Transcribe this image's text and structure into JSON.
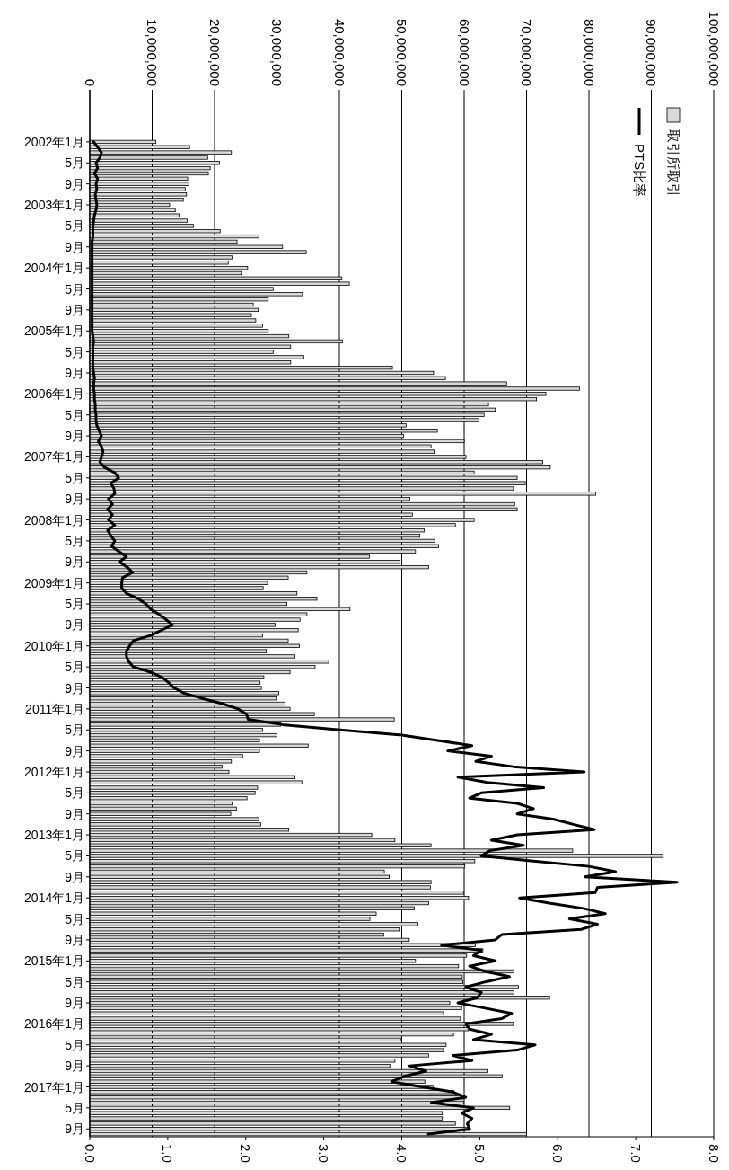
{
  "chart_data": {
    "type": "bar",
    "orientation": "horizontal",
    "categories": [
      "2002年1月",
      null,
      null,
      null,
      "5月",
      null,
      null,
      null,
      "9月",
      null,
      null,
      null,
      "2003年1月",
      null,
      null,
      null,
      "5月",
      null,
      null,
      null,
      "9月",
      null,
      null,
      null,
      "2004年1月",
      null,
      null,
      null,
      "5月",
      null,
      null,
      null,
      "9月",
      null,
      null,
      null,
      "2005年1月",
      null,
      null,
      null,
      "5月",
      null,
      null,
      null,
      "9月",
      null,
      null,
      null,
      "2006年1月",
      null,
      null,
      null,
      "5月",
      null,
      null,
      null,
      "9月",
      null,
      null,
      null,
      "2007年1月",
      null,
      null,
      null,
      "5月",
      null,
      null,
      null,
      "9月",
      null,
      null,
      null,
      "2008年1月",
      null,
      null,
      null,
      "5月",
      null,
      null,
      null,
      "9月",
      null,
      null,
      null,
      "2009年1月",
      null,
      null,
      null,
      "5月",
      null,
      null,
      null,
      "9月",
      null,
      null,
      null,
      "2010年1月",
      null,
      null,
      null,
      "5月",
      null,
      null,
      null,
      "9月",
      null,
      null,
      null,
      "2011年1月",
      null,
      null,
      null,
      "5月",
      null,
      null,
      null,
      "9月",
      null,
      null,
      null,
      "2012年1月",
      null,
      null,
      null,
      "5月",
      null,
      null,
      null,
      "9月",
      null,
      null,
      null,
      "2013年1月",
      null,
      null,
      null,
      "5月",
      null,
      null,
      null,
      "9月",
      null,
      null,
      null,
      "2014年1月",
      null,
      null,
      null,
      "5月",
      null,
      null,
      null,
      "9月",
      null,
      null,
      null,
      "2015年1月",
      null,
      null,
      null,
      "5月",
      null,
      null,
      null,
      "9月",
      null,
      null,
      null,
      "2016年1月",
      null,
      null,
      null,
      "5月",
      null,
      null,
      null,
      "9月",
      null,
      null,
      null,
      "2017年1月",
      null,
      null,
      null,
      "5月",
      null,
      null,
      null,
      "9月",
      null
    ],
    "series": [
      {
        "name": "取引所取引",
        "color": "#d9d9d9",
        "values": [
          10600000,
          16000000,
          22700000,
          18900000,
          20800000,
          19300000,
          19000000,
          15700000,
          15900000,
          15300000,
          15500000,
          15000000,
          12800000,
          13700000,
          14300000,
          15600000,
          16600000,
          20900000,
          27100000,
          23600000,
          30900000,
          34700000,
          22800000,
          22200000,
          25300000,
          24300000,
          40400000,
          41600000,
          29400000,
          34100000,
          28600000,
          26200000,
          27000000,
          25900000,
          26600000,
          27700000,
          28600000,
          31900000,
          40500000,
          32200000,
          29400000,
          34300000,
          32200000,
          48500000,
          55100000,
          57000000,
          66800000,
          78500000,
          73100000,
          71600000,
          63900000,
          65000000,
          63200000,
          62400000,
          50700000,
          55700000,
          50300000,
          60000000,
          54700000,
          55200000,
          60300000,
          72600000,
          73800000,
          61600000,
          68500000,
          69800000,
          67900000,
          81100000,
          51300000,
          68100000,
          68500000,
          51700000,
          61600000,
          58600000,
          53600000,
          52900000,
          55300000,
          55900000,
          52200000,
          44800000,
          49700000,
          54300000,
          34800000,
          31800000,
          28500000,
          27800000,
          33200000,
          36400000,
          31600000,
          41700000,
          34800000,
          33700000,
          29700000,
          33400000,
          27700000,
          31800000,
          33600000,
          28300000,
          32900000,
          38300000,
          36100000,
          32100000,
          27900000,
          27300000,
          27500000,
          30300000,
          29900000,
          31300000,
          32100000,
          36000000,
          48800000,
          30600000,
          27700000,
          30000000,
          27200000,
          35000000,
          27200000,
          24500000,
          22700000,
          21200000,
          22300000,
          32900000,
          34000000,
          26900000,
          26500000,
          25200000,
          22800000,
          23500000,
          22600000,
          27100000,
          27400000,
          31900000,
          45200000,
          48900000,
          54700000,
          77400000,
          91900000,
          61700000,
          60100000,
          47200000,
          48000000,
          54700000,
          54600000,
          59900000,
          60700000,
          54300000,
          52000000,
          45900000,
          44900000,
          52600000,
          49600000,
          47100000,
          51200000,
          61800000,
          63000000,
          60400000,
          52200000,
          59100000,
          68000000,
          59700000,
          59800000,
          68700000,
          68000000,
          73700000,
          57700000,
          59600000,
          56700000,
          59400000,
          67900000,
          60700000,
          58300000,
          49900000,
          57100000,
          56700000,
          54300000,
          48900000,
          48100000,
          63800000,
          66100000,
          53700000,
          55000000,
          58300000,
          60000000,
          59900000,
          67300000,
          56500000,
          56500000,
          58600000,
          60900000,
          70000000
        ]
      },
      {
        "name": "PTS比率",
        "type": "line",
        "axis": "x2",
        "color": "#000000",
        "values": [
          0.05,
          0.1,
          0.15,
          0.13,
          0.08,
          0.1,
          0.06,
          0.1,
          0.08,
          0.09,
          0.07,
          0.08,
          0.09,
          0.08,
          0.06,
          0.05,
          0.04,
          0.04,
          0.04,
          0.03,
          0.03,
          0.03,
          0.03,
          0.03,
          0.03,
          0.03,
          0.03,
          0.03,
          0.03,
          0.03,
          0.03,
          0.03,
          0.03,
          0.03,
          0.03,
          0.03,
          0.03,
          0.04,
          0.05,
          0.04,
          0.04,
          0.04,
          0.04,
          0.04,
          0.05,
          0.06,
          0.05,
          0.05,
          0.06,
          0.06,
          0.07,
          0.07,
          0.08,
          0.08,
          0.09,
          0.12,
          0.15,
          0.11,
          0.15,
          0.17,
          0.15,
          0.13,
          0.19,
          0.32,
          0.37,
          0.27,
          0.31,
          0.32,
          0.24,
          0.29,
          0.23,
          0.29,
          0.24,
          0.32,
          0.23,
          0.27,
          0.32,
          0.28,
          0.37,
          0.47,
          0.38,
          0.48,
          0.55,
          0.42,
          0.41,
          0.41,
          0.47,
          0.62,
          0.72,
          0.78,
          0.89,
          0.98,
          1.06,
          0.92,
          0.78,
          0.56,
          0.51,
          0.47,
          0.47,
          0.5,
          0.56,
          0.78,
          0.93,
          1.01,
          1.08,
          1.21,
          1.44,
          1.7,
          1.9,
          2.01,
          2.03,
          2.47,
          3.21,
          4.0,
          4.46,
          4.9,
          4.59,
          5.15,
          4.95,
          5.43,
          6.34,
          4.72,
          5.1,
          5.82,
          5.02,
          4.87,
          5.48,
          5.69,
          5.48,
          5.94,
          6.2,
          6.47,
          5.48,
          5.15,
          5.56,
          5.13,
          5.02,
          5.69,
          6.4,
          6.74,
          6.35,
          7.53,
          6.51,
          6.48,
          5.51,
          5.89,
          6.33,
          6.61,
          6.15,
          6.51,
          6.3,
          5.28,
          5.2,
          4.51,
          5.02,
          4.92,
          5.2,
          4.87,
          5.07,
          5.38,
          5.07,
          4.82,
          5.02,
          4.97,
          4.72,
          5.07,
          5.41,
          5.28,
          4.82,
          4.87,
          5.15,
          4.92,
          5.71,
          5.48,
          4.66,
          4.9,
          4.1,
          4.31,
          4.03,
          3.87,
          4.26,
          4.66,
          4.82,
          4.38,
          4.92,
          4.77,
          4.9,
          4.84,
          4.87,
          4.34
        ]
      }
    ],
    "xlim": [
      0,
      100000000
    ],
    "xticks": [
      {
        "value": 0,
        "label": "0"
      },
      {
        "value": 10000000,
        "label": "10,000,000"
      },
      {
        "value": 20000000,
        "label": "20,000,000"
      },
      {
        "value": 30000000,
        "label": "30,000,000"
      },
      {
        "value": 40000000,
        "label": "40,000,000"
      },
      {
        "value": 50000000,
        "label": "50,000,000"
      },
      {
        "value": 60000000,
        "label": "60,000,000"
      },
      {
        "value": 70000000,
        "label": "70,000,000"
      },
      {
        "value": 80000000,
        "label": "80,000,000"
      },
      {
        "value": 90000000,
        "label": "90,000,000"
      },
      {
        "value": 100000000,
        "label": "100,000,000"
      }
    ],
    "x2lim": [
      0,
      8
    ],
    "x2ticks": [
      {
        "value": 0,
        "label": "0.0"
      },
      {
        "value": 1,
        "label": "1.0"
      },
      {
        "value": 2,
        "label": "2.0"
      },
      {
        "value": 3,
        "label": "3.0"
      },
      {
        "value": 4,
        "label": "4.0"
      },
      {
        "value": 5,
        "label": "5.0"
      },
      {
        "value": 6,
        "label": "6.0"
      },
      {
        "value": 7,
        "label": "7.0"
      },
      {
        "value": 8,
        "label": "8.0"
      }
    ],
    "grid": "x",
    "legend": "top right"
  }
}
